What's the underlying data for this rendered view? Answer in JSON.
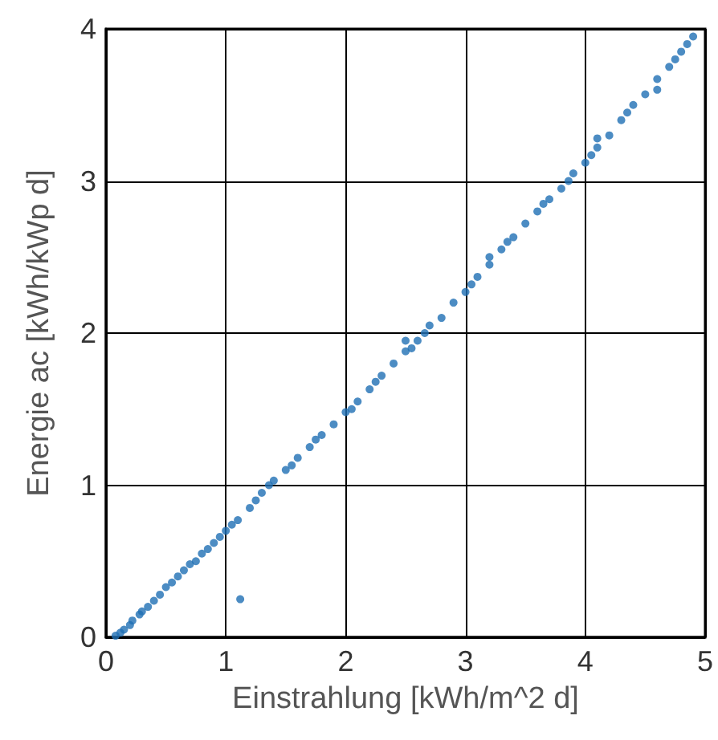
{
  "chart_data": {
    "type": "scatter",
    "xlabel": "Einstrahlung [kWh/m^2 d]",
    "ylabel": "Energie ac [kWh/kWp d]",
    "xlim": [
      0,
      5
    ],
    "xticks": [
      0,
      1,
      2,
      3,
      4,
      5
    ],
    "ylim": [
      0,
      4
    ],
    "yticks": [
      0,
      1,
      2,
      3,
      4
    ],
    "grid": true,
    "marker": "circle",
    "series": [
      {
        "color": "#1f6fb4",
        "x": [
          0.08,
          0.12,
          0.15,
          0.2,
          0.22,
          0.28,
          0.3,
          0.35,
          0.4,
          0.45,
          0.5,
          0.55,
          0.6,
          0.65,
          0.7,
          0.75,
          0.8,
          0.85,
          0.9,
          0.95,
          1.0,
          1.05,
          1.1,
          1.12,
          1.2,
          1.25,
          1.3,
          1.36,
          1.4,
          1.5,
          1.55,
          1.6,
          1.7,
          1.75,
          1.8,
          1.9,
          2.0,
          2.05,
          2.1,
          2.2,
          2.25,
          2.3,
          2.4,
          2.5,
          2.55,
          2.6,
          2.66,
          2.7,
          2.8,
          2.9,
          3.0,
          3.05,
          3.1,
          3.2,
          3.3,
          3.35,
          3.4,
          3.5,
          3.6,
          3.65,
          3.7,
          3.8,
          3.86,
          3.9,
          4.0,
          4.05,
          4.1,
          4.2,
          4.3,
          4.35,
          4.4,
          4.5,
          4.6,
          4.7,
          4.75,
          4.8,
          4.85,
          4.9,
          2.5,
          3.2,
          4.1,
          4.6
        ],
        "values": [
          0.01,
          0.03,
          0.05,
          0.08,
          0.11,
          0.15,
          0.17,
          0.2,
          0.24,
          0.28,
          0.33,
          0.36,
          0.4,
          0.44,
          0.48,
          0.5,
          0.55,
          0.58,
          0.62,
          0.66,
          0.7,
          0.74,
          0.77,
          0.25,
          0.85,
          0.9,
          0.95,
          1.0,
          1.03,
          1.1,
          1.13,
          1.18,
          1.25,
          1.3,
          1.33,
          1.4,
          1.48,
          1.5,
          1.55,
          1.63,
          1.68,
          1.72,
          1.8,
          1.88,
          1.9,
          1.95,
          2.0,
          2.05,
          2.1,
          2.2,
          2.27,
          2.32,
          2.37,
          2.45,
          2.55,
          2.6,
          2.63,
          2.72,
          2.8,
          2.85,
          2.88,
          2.95,
          3.0,
          3.05,
          3.12,
          3.17,
          3.22,
          3.3,
          3.4,
          3.45,
          3.5,
          3.57,
          3.67,
          3.75,
          3.8,
          3.85,
          3.9,
          3.95,
          1.95,
          2.5,
          3.28,
          3.6
        ]
      }
    ]
  }
}
